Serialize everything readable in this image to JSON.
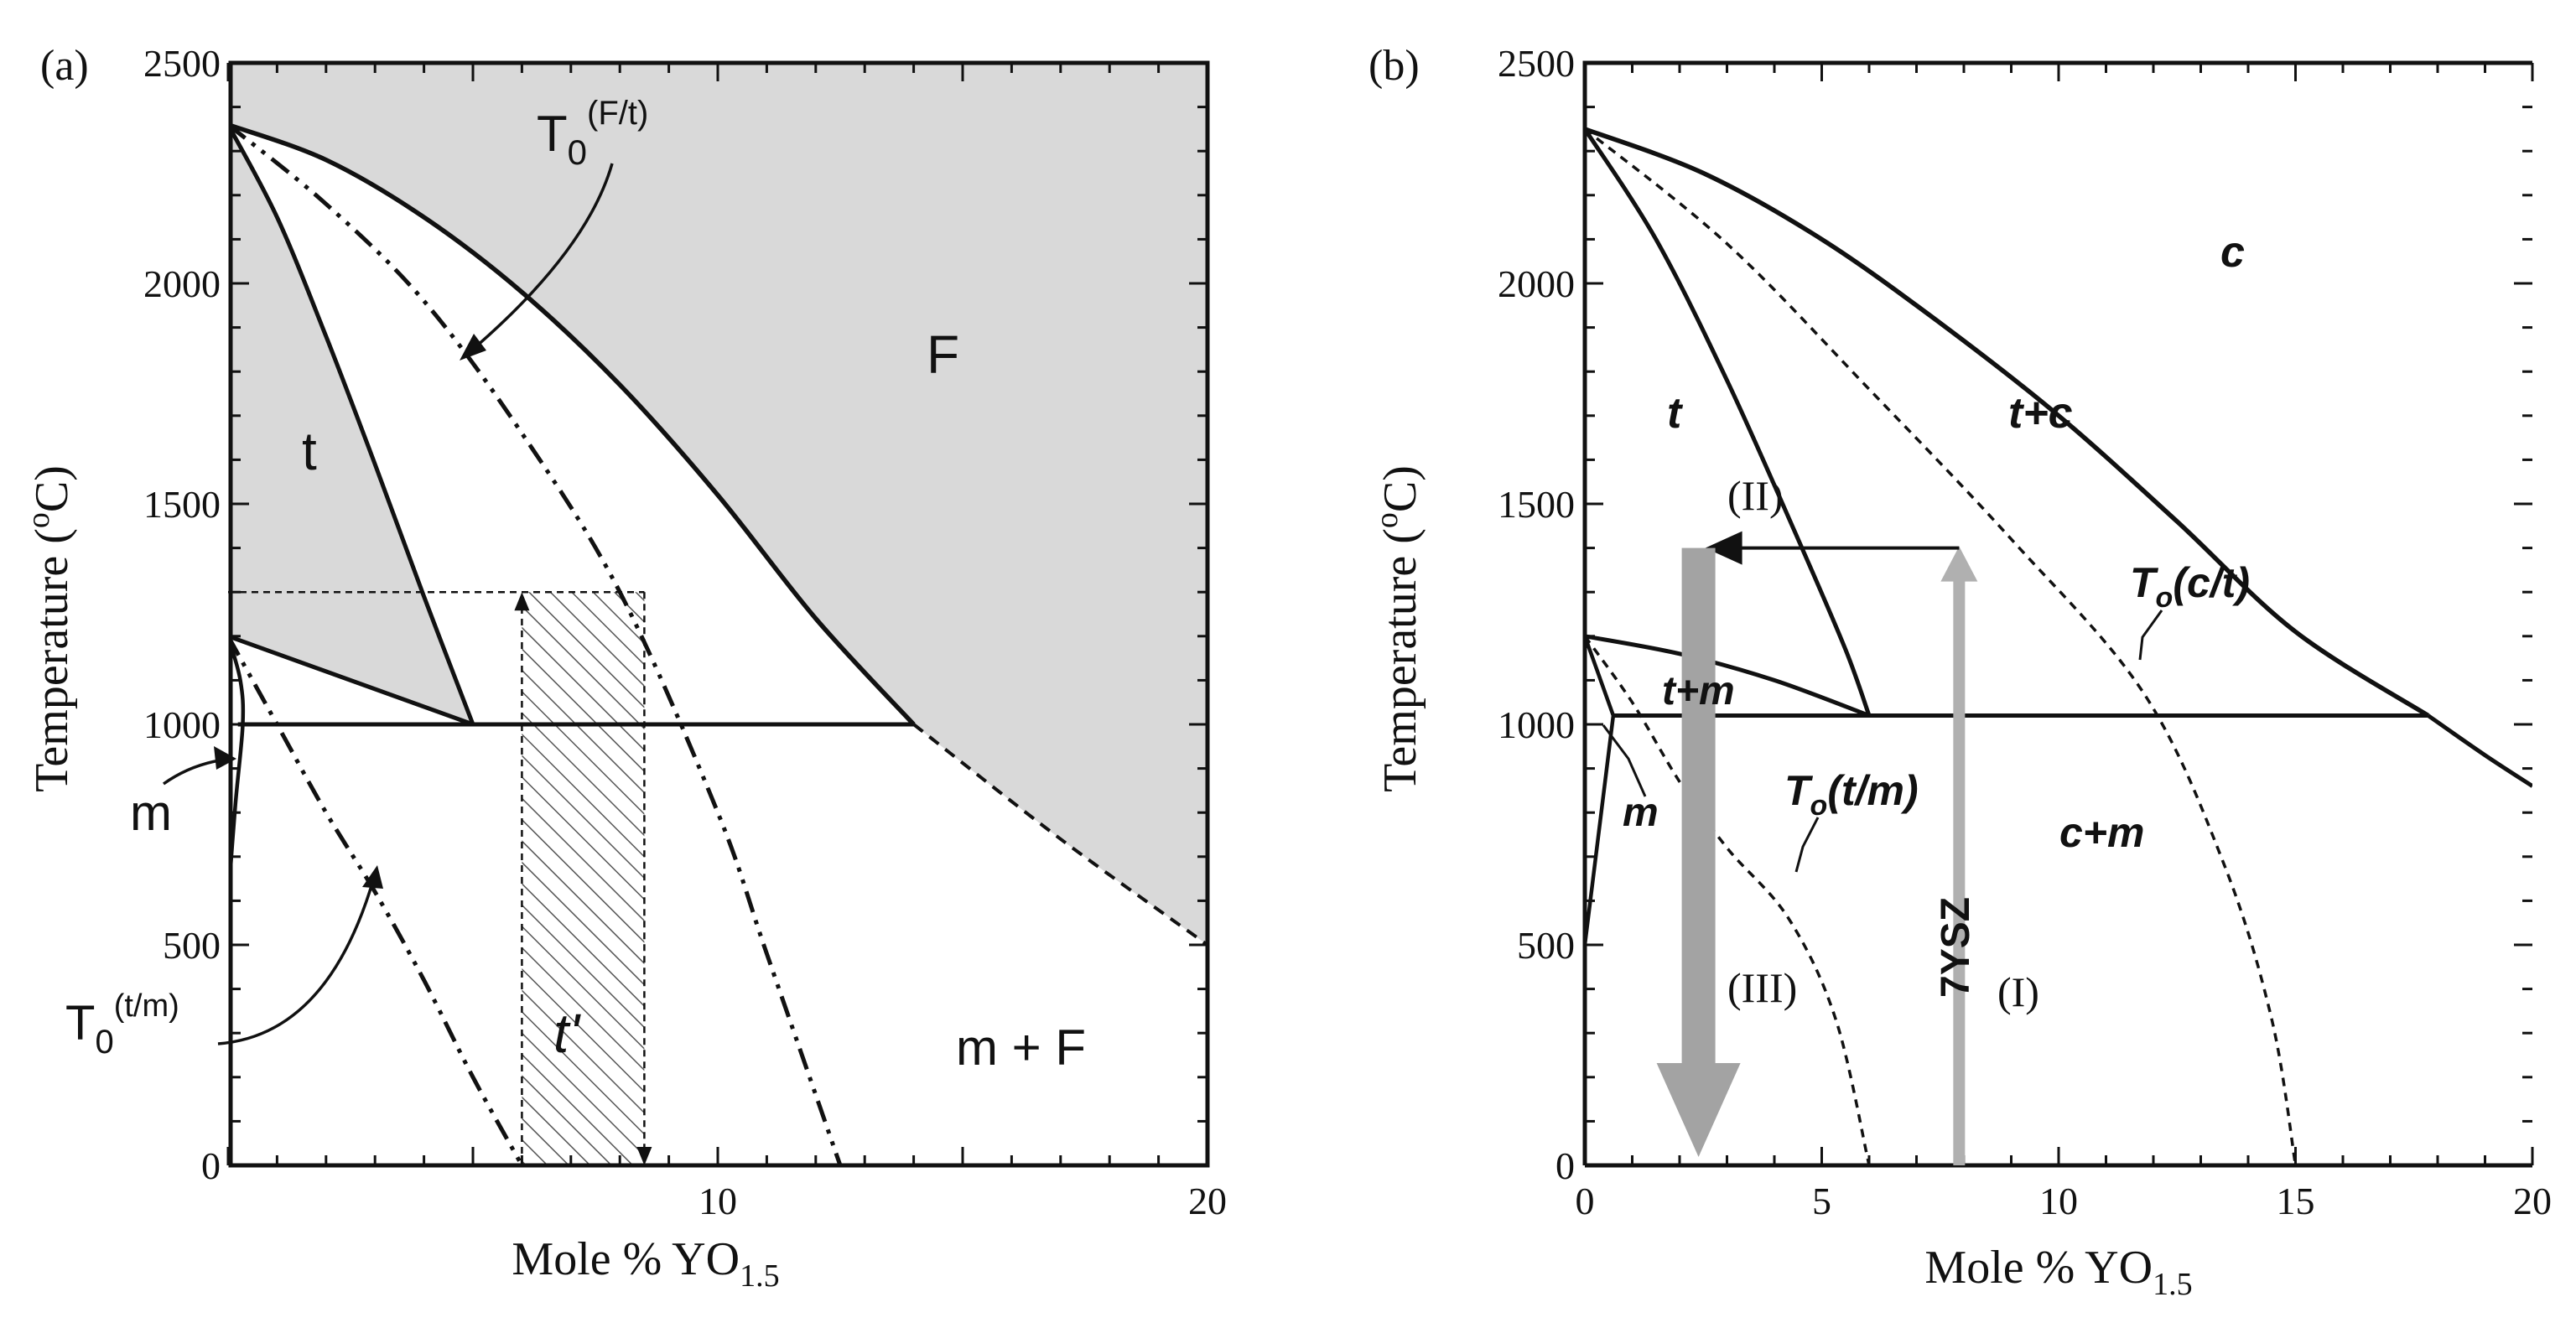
{
  "chart_data": [
    {
      "type": "phase-diagram",
      "panel_label": "(a)",
      "xlabel": "Mole % YO",
      "xlabel_sub": "1.5",
      "ylabel": "Temperature  (",
      "ylabel_deg": "o",
      "ylabel_end": "C)",
      "xlim": [
        0,
        20
      ],
      "ylim": [
        0,
        2500
      ],
      "x_ticks": [
        10,
        20
      ],
      "x_tick_labels": [
        "10",
        "20"
      ],
      "y_ticks": [
        0,
        500,
        1000,
        1500,
        2000,
        2500
      ],
      "y_tick_labels": [
        "0",
        "500",
        "1000",
        "1500",
        "2000",
        "2500"
      ],
      "eutectoid_temperature": 1000,
      "t_prime_range": {
        "x": [
          6.0,
          8.5
        ],
        "top_temperature": 1300
      },
      "regions": [
        {
          "label": "t",
          "x": 1.5,
          "y": 1620,
          "shaded": true
        },
        {
          "label": "F",
          "x": 15.2,
          "y": 1880,
          "shaded": true
        },
        {
          "label": "m",
          "x": -0.3,
          "y": 820,
          "shaded": false
        },
        {
          "label": "m + F",
          "x": 16.3,
          "y": 270,
          "shaded": false
        },
        {
          "label": "t'",
          "x": 7.2,
          "y": 320,
          "shaded": false
        }
      ],
      "annotations": [
        {
          "base": "T",
          "sub": "0",
          "sup": "(F/t)"
        },
        {
          "base": "T",
          "sub": "0",
          "sup": "(t/m)"
        }
      ],
      "curves": [
        {
          "name": "F/(F+t) boundary",
          "points": [
            [
              0,
              2360
            ],
            [
              2,
              2280
            ],
            [
              4,
              2150
            ],
            [
              6,
              1980
            ],
            [
              8,
              1770
            ],
            [
              10,
              1520
            ],
            [
              12,
              1240
            ],
            [
              14,
              1000
            ]
          ]
        },
        {
          "name": "t/(t+F) boundary",
          "points": [
            [
              0,
              2360
            ],
            [
              1,
              2150
            ],
            [
              2,
              1880
            ],
            [
              3,
              1590
            ],
            [
              4,
              1290
            ],
            [
              5,
              1000
            ]
          ]
        },
        {
          "name": "t/(t+m) boundary",
          "points": [
            [
              0,
              1200
            ],
            [
              5,
              1000
            ]
          ]
        },
        {
          "name": "eutectoid",
          "points": [
            [
              0.2,
              1000
            ],
            [
              14,
              1000
            ]
          ]
        },
        {
          "name": "m+F/F boundary",
          "points": [
            [
              14,
              1000
            ],
            [
              17,
              740
            ],
            [
              20,
              500
            ]
          ]
        },
        {
          "name": "m solvus",
          "points": [
            [
              0,
              1200
            ],
            [
              0.25,
              1100
            ],
            [
              0.3,
              1000
            ],
            [
              0.15,
              820
            ],
            [
              0,
              600
            ]
          ]
        },
        {
          "name": "T0(F/t)",
          "points": [
            [
              0,
              2360
            ],
            [
              2,
              2180
            ],
            [
              4,
              1960
            ],
            [
              6,
              1660
            ],
            [
              8,
              1300
            ],
            [
              10,
              800
            ],
            [
              11,
              480
            ],
            [
              12.5,
              0
            ]
          ]
        },
        {
          "name": "T0(t/m)",
          "points": [
            [
              0,
              1200
            ],
            [
              1,
              1000
            ],
            [
              2,
              800
            ],
            [
              3,
              620
            ],
            [
              4,
              420
            ],
            [
              5,
              200
            ],
            [
              6,
              0
            ]
          ]
        }
      ]
    },
    {
      "type": "phase-diagram",
      "panel_label": "(b)",
      "xlabel": "Mole % YO",
      "xlabel_sub": "1.5",
      "ylabel": "Temperature  (",
      "ylabel_deg": "o",
      "ylabel_end": "C)",
      "xlim": [
        0,
        20
      ],
      "ylim": [
        0,
        2500
      ],
      "x_ticks": [
        0,
        5,
        10,
        15,
        20
      ],
      "x_tick_labels": [
        "0",
        "5",
        "10",
        "15",
        "20"
      ],
      "y_ticks": [
        0,
        500,
        1000,
        1500,
        2000,
        2500
      ],
      "y_tick_labels": [
        "0",
        "500",
        "1000",
        "1500",
        "2000",
        "2500"
      ],
      "eutectoid_temperature": 1020,
      "regions": [
        {
          "label": "c",
          "x": 13.5,
          "y": 2060
        },
        {
          "label": "t",
          "x": 2.1,
          "y": 1720
        },
        {
          "label": "t+c",
          "x": 10.4,
          "y": 1720
        },
        {
          "label": "t+m",
          "x": 1.7,
          "y": 1040
        },
        {
          "label": "m",
          "x": 1.2,
          "y": 770
        },
        {
          "label": "c+m",
          "x": 11.3,
          "y": 730
        }
      ],
      "annotations": [
        {
          "base": "T",
          "sub": "o",
          "text": "(c/t)",
          "points_to": [
            11.8,
            1070
          ]
        },
        {
          "base": "T",
          "sub": "o",
          "text": "(t/m)",
          "points_to": [
            4.3,
            600
          ]
        }
      ],
      "paths": [
        {
          "label": "(I)",
          "text": "7YSZ",
          "x": 7.9,
          "from_temperature": 0,
          "to_temperature": 1400
        },
        {
          "label": "(II)",
          "from_x": 7.9,
          "to_x": 2.4,
          "temperature": 1400
        },
        {
          "label": "(III)",
          "x": 2.4,
          "from_temperature": 1400,
          "to_temperature": 0
        }
      ],
      "curves": [
        {
          "name": "c/(t+c) boundary",
          "points": [
            [
              0,
              2350
            ],
            [
              2.5,
              2250
            ],
            [
              5,
              2100
            ],
            [
              7.5,
              1910
            ],
            [
              10,
              1700
            ],
            [
              12.5,
              1460
            ],
            [
              15,
              1210
            ],
            [
              17.8,
              1020
            ]
          ]
        },
        {
          "name": "t/(t+c) boundary",
          "points": [
            [
              0,
              2350
            ],
            [
              1.5,
              2100
            ],
            [
              3,
              1780
            ],
            [
              4.5,
              1420
            ],
            [
              5.5,
              1170
            ],
            [
              6,
              1020
            ]
          ]
        },
        {
          "name": "t/(t+m) boundary",
          "points": [
            [
              0,
              1200
            ],
            [
              2,
              1160
            ],
            [
              4,
              1100
            ],
            [
              6,
              1020
            ]
          ]
        },
        {
          "name": "eutectoid",
          "points": [
            [
              0.6,
              1020
            ],
            [
              17.8,
              1020
            ]
          ]
        },
        {
          "name": "c/(c+m) boundary",
          "points": [
            [
              17.8,
              1020
            ],
            [
              19,
              930
            ],
            [
              20,
              860
            ]
          ]
        },
        {
          "name": "m solvus",
          "points": [
            [
              0,
              1200
            ],
            [
              0.6,
              1020
            ],
            [
              0,
              500
            ]
          ]
        },
        {
          "name": "T0(c/t)",
          "points": [
            [
              0,
              2350
            ],
            [
              3,
              2090
            ],
            [
              6,
              1760
            ],
            [
              9,
              1420
            ],
            [
              11.8,
              1070
            ],
            [
              13.5,
              680
            ],
            [
              14.5,
              330
            ],
            [
              15,
              0
            ]
          ]
        },
        {
          "name": "T0(t/m)",
          "points": [
            [
              0,
              1200
            ],
            [
              1,
              1050
            ],
            [
              2,
              870
            ],
            [
              3,
              720
            ],
            [
              4.3,
              560
            ],
            [
              5.3,
              330
            ],
            [
              6,
              0
            ]
          ]
        }
      ]
    }
  ]
}
